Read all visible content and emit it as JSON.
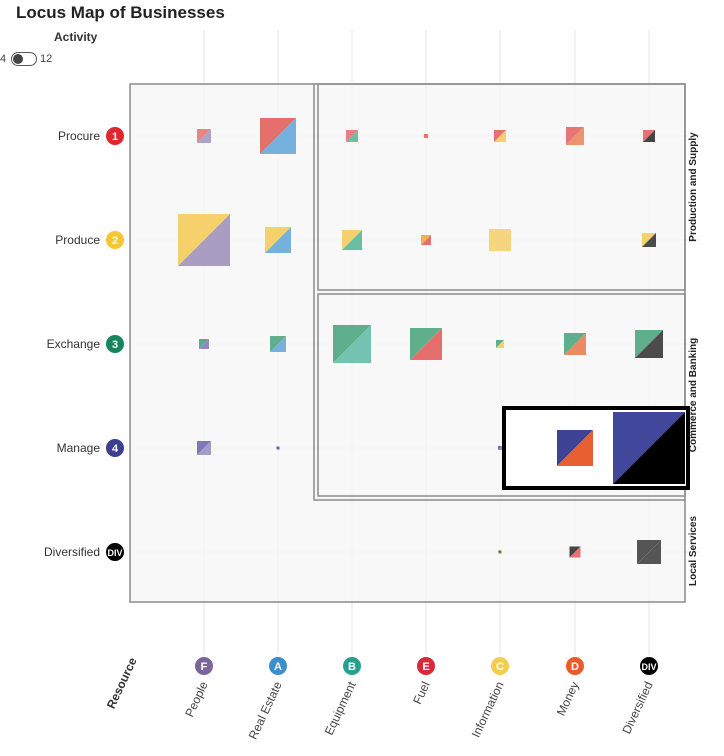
{
  "title": "Locus Map of Businesses",
  "toggle": {
    "label": "Activity",
    "min": "4",
    "max": "12"
  },
  "chart_data": {
    "type": "bubble-matrix",
    "x_axis_title": "Resource",
    "rows": [
      {
        "name": "Procure",
        "badge": "1",
        "color": "#e0262f"
      },
      {
        "name": "Produce",
        "badge": "2",
        "color": "#f7c634"
      },
      {
        "name": "Exchange",
        "badge": "3",
        "color": "#15855d"
      },
      {
        "name": "Manage",
        "badge": "4",
        "color": "#3c3f8f"
      },
      {
        "name": "Diversified",
        "badge": "DIV",
        "color": "#000000"
      }
    ],
    "columns": [
      {
        "name": "People",
        "badge": "F",
        "color": "#7a669b"
      },
      {
        "name": "Real Estate",
        "badge": "A",
        "color": "#3d8fcb"
      },
      {
        "name": "Equipment",
        "badge": "B",
        "color": "#29a08f"
      },
      {
        "name": "Fuel",
        "badge": "E",
        "color": "#d8283a"
      },
      {
        "name": "Information",
        "badge": "C",
        "color": "#f5cd4e"
      },
      {
        "name": "Money",
        "badge": "D",
        "color": "#e75b2c"
      },
      {
        "name": "Diversified",
        "badge": "DIV",
        "color": "#000000"
      }
    ],
    "groups": [
      {
        "label": "Production and Supply"
      },
      {
        "label": "Commerce and Banking"
      },
      {
        "label": "Local Services"
      }
    ],
    "cells": [
      {
        "row": 0,
        "col": 0,
        "size": 14,
        "c1": "#e77170",
        "c2": "#9f94c2",
        "opacity": 0.85
      },
      {
        "row": 0,
        "col": 1,
        "size": 36,
        "c1": "#e46f6d",
        "c2": "#75b1dc",
        "opacity": 1
      },
      {
        "row": 0,
        "col": 2,
        "size": 12,
        "c1": "#e77170",
        "c2": "#5cba98",
        "opacity": 0.9
      },
      {
        "row": 0,
        "col": 3,
        "size": 4,
        "c1": "#e46f6d",
        "c2": "#e46f6d",
        "opacity": 1
      },
      {
        "row": 0,
        "col": 4,
        "size": 12,
        "c1": "#e77170",
        "c2": "#f4d06f",
        "opacity": 1
      },
      {
        "row": 0,
        "col": 5,
        "size": 18,
        "c1": "#e77170",
        "c2": "#ec8f68",
        "opacity": 0.95
      },
      {
        "row": 0,
        "col": 6,
        "size": 12,
        "c1": "#e77170",
        "c2": "#444444",
        "opacity": 1
      },
      {
        "row": 1,
        "col": 0,
        "size": 52,
        "c1": "#f6d06b",
        "c2": "#a89cc0",
        "opacity": 1
      },
      {
        "row": 1,
        "col": 1,
        "size": 26,
        "c1": "#f6d06b",
        "c2": "#75b1dc",
        "opacity": 1
      },
      {
        "row": 1,
        "col": 2,
        "size": 20,
        "c1": "#f6d06b",
        "c2": "#67bfa4",
        "opacity": 1
      },
      {
        "row": 1,
        "col": 3,
        "size": 10,
        "c1": "#f0b44a",
        "c2": "#e46f6d",
        "opacity": 1
      },
      {
        "row": 1,
        "col": 4,
        "size": 22,
        "c1": "#f6d06b",
        "c2": "#f6d06b",
        "opacity": 0.85
      },
      {
        "row": 1,
        "col": 6,
        "size": 14,
        "c1": "#f6d06b",
        "c2": "#4b4b4b",
        "opacity": 1
      },
      {
        "row": 2,
        "col": 0,
        "size": 10,
        "c1": "#5cab8a",
        "c2": "#9188c0",
        "opacity": 1
      },
      {
        "row": 2,
        "col": 1,
        "size": 16,
        "c1": "#5fae8c",
        "c2": "#75b1dc",
        "opacity": 1
      },
      {
        "row": 2,
        "col": 2,
        "size": 38,
        "c1": "#5fae8c",
        "c2": "#73c3b0",
        "opacity": 1
      },
      {
        "row": 2,
        "col": 3,
        "size": 32,
        "c1": "#5fae8c",
        "c2": "#e46f6d",
        "opacity": 1
      },
      {
        "row": 2,
        "col": 4,
        "size": 8,
        "c1": "#5fae8c",
        "c2": "#f4d06f",
        "opacity": 1
      },
      {
        "row": 2,
        "col": 5,
        "size": 22,
        "c1": "#5fae8c",
        "c2": "#ec8a62",
        "opacity": 1
      },
      {
        "row": 2,
        "col": 6,
        "size": 28,
        "c1": "#5fae8c",
        "c2": "#4b4b4b",
        "opacity": 1
      },
      {
        "row": 3,
        "col": 0,
        "size": 14,
        "c1": "#7c79b4",
        "c2": "#a29cc9",
        "opacity": 1
      },
      {
        "row": 3,
        "col": 1,
        "size": 3,
        "c1": "#5b5ea9",
        "c2": "#5b5ea9",
        "opacity": 1
      },
      {
        "row": 3,
        "col": 4,
        "size": 4,
        "c1": "#6a6fae",
        "c2": "#9a90c0",
        "opacity": 1
      },
      {
        "row": 3,
        "col": 5,
        "size": 36,
        "c1": "#3e4396",
        "c2": "#e8602f",
        "opacity": 1
      },
      {
        "row": 3,
        "col": 6,
        "size": 72,
        "c1": "#41479a",
        "c2": "#000000",
        "opacity": 1
      },
      {
        "row": 4,
        "col": 4,
        "size": 3,
        "c1": "#555555",
        "c2": "#7a7a3a",
        "opacity": 1
      },
      {
        "row": 4,
        "col": 5,
        "size": 11,
        "c1": "#444444",
        "c2": "#e77170",
        "opacity": 1
      },
      {
        "row": 4,
        "col": 6,
        "size": 24,
        "c1": "#555555",
        "c2": "#555555",
        "opacity": 1
      }
    ],
    "highlight": {
      "rows": [
        3
      ],
      "cols": [
        5,
        6
      ]
    }
  }
}
